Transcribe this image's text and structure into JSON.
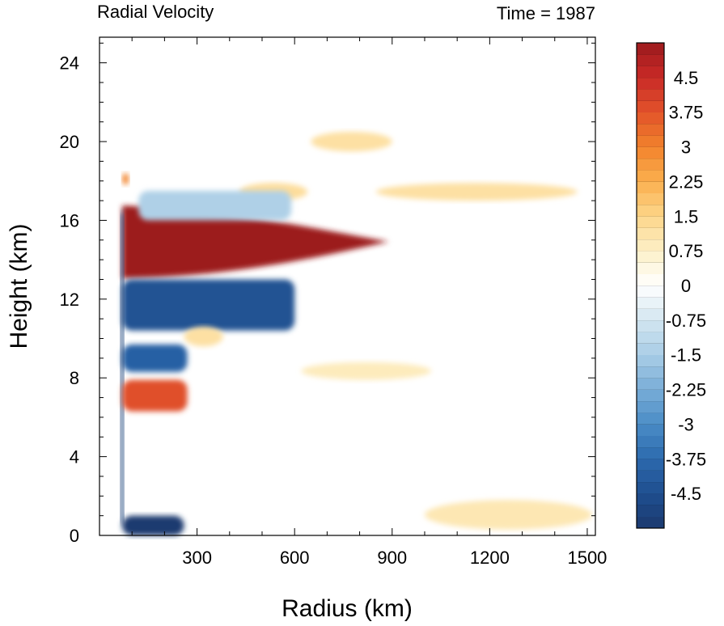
{
  "chart_data": {
    "type": "heatmap",
    "title_left": "Radial Velocity",
    "title_right": "Time = 1987",
    "xlabel": "Radius (km)",
    "ylabel": "Height (km)",
    "xlim": [
      0,
      1525
    ],
    "ylim": [
      0,
      25.3
    ],
    "x_ticks": [
      300,
      600,
      900,
      1200,
      1500
    ],
    "x_tick_labels": [
      "300",
      "600",
      "900",
      "1200",
      "1500"
    ],
    "y_ticks": [
      0,
      4,
      8,
      12,
      16,
      20,
      24
    ],
    "y_tick_labels": [
      "0",
      "4",
      "8",
      "12",
      "16",
      "20",
      "24"
    ],
    "colorbar": {
      "min": -5.25,
      "max": 5.25,
      "step": 0.25,
      "tick_values": [
        4.5,
        3.75,
        3,
        2.25,
        1.5,
        0.75,
        0,
        -0.75,
        -1.5,
        -2.25,
        -3,
        -3.75,
        -4.5
      ],
      "tick_labels": [
        "4.5",
        "3.75",
        "3",
        "2.25",
        "1.5",
        "0.75",
        "0",
        "-0.75",
        "-1.5",
        "-2.25",
        "-3",
        "-3.75",
        "-4.5"
      ],
      "colors": [
        "#1b3a6e",
        "#1f4e8f",
        "#2c6aae",
        "#4a8cc6",
        "#79add8",
        "#a9cde6",
        "#d3e6f1",
        "#ffffff",
        "#fdf0c8",
        "#fdd68a",
        "#fbb04f",
        "#f2832c",
        "#e2532a",
        "#c92a27",
        "#9c1a1d"
      ]
    },
    "features": [
      {
        "shape": "wedge",
        "radius_start": 70,
        "radius_tip": 890,
        "height_center": 14.9,
        "height_half_width_start": 1.85,
        "value": 5.25
      },
      {
        "shape": "band",
        "radius": [
          70,
          600
        ],
        "height": [
          10.4,
          13.0
        ],
        "value": -4.4
      },
      {
        "shape": "band",
        "radius": [
          70,
          270
        ],
        "height": [
          8.3,
          9.7
        ],
        "value": -4.0
      },
      {
        "shape": "band",
        "radius": [
          65,
          75
        ],
        "height": [
          0.5,
          16.5
        ],
        "value": -5.0
      },
      {
        "shape": "band",
        "radius": [
          70,
          260
        ],
        "height": [
          0,
          1.0
        ],
        "value": -5.2
      },
      {
        "shape": "band",
        "radius": [
          70,
          270
        ],
        "height": [
          6.3,
          7.9
        ],
        "value": 3.8
      },
      {
        "shape": "blob",
        "radius": [
          650,
          900
        ],
        "height": [
          19.5,
          20.5
        ],
        "value": 1.2
      },
      {
        "shape": "blob",
        "radius": [
          850,
          1470
        ],
        "height": [
          17.0,
          17.9
        ],
        "value": 1.2
      },
      {
        "shape": "blob",
        "radius": [
          430,
          640
        ],
        "height": [
          17.0,
          17.9
        ],
        "value": 1.3
      },
      {
        "shape": "band",
        "radius": [
          120,
          590
        ],
        "height": [
          16.0,
          17.5
        ],
        "value": -1.4
      },
      {
        "shape": "blob",
        "radius": [
          70,
          90
        ],
        "height": [
          17.8,
          18.4
        ],
        "value": 3.0
      },
      {
        "shape": "blob",
        "radius": [
          260,
          380
        ],
        "height": [
          9.6,
          10.6
        ],
        "value": 1.2
      },
      {
        "shape": "blob",
        "radius": [
          620,
          1020
        ],
        "height": [
          7.9,
          8.8
        ],
        "value": 0.9
      },
      {
        "shape": "blob",
        "radius": [
          1000,
          1515
        ],
        "height": [
          0.3,
          1.8
        ],
        "value": 1.0
      }
    ]
  }
}
